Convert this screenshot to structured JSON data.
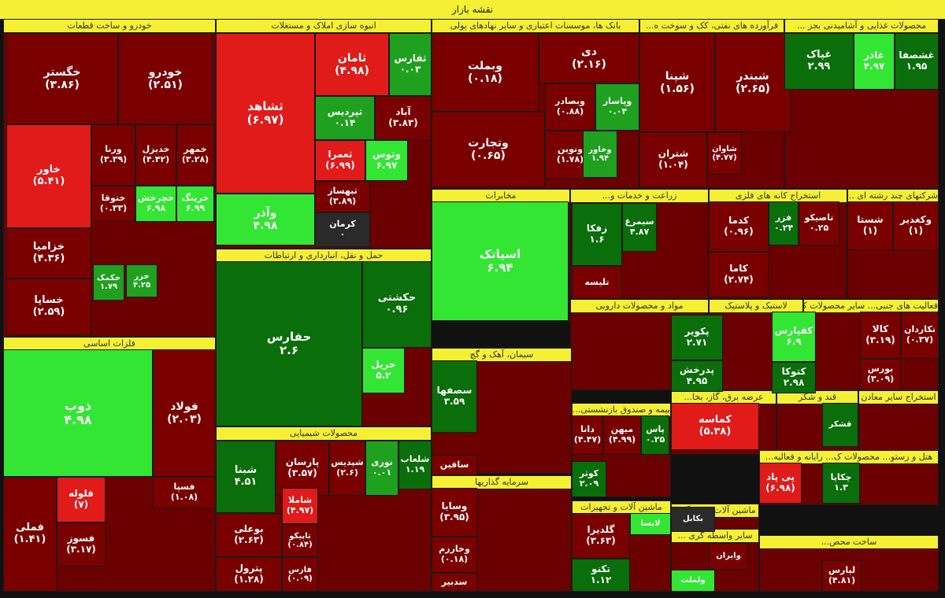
{
  "title": "نقشه بازار",
  "colors": {
    "dark_red": "#7a0000",
    "red": "#e11a1a",
    "bright_red": "#ff0000",
    "dark_green": "#0a6e0a",
    "green": "#1fa11f",
    "bright_green": "#33e633",
    "black": "#2a2a2a",
    "sector_bar": "#f6f034"
  },
  "sectors": [
    {
      "id": "auto",
      "label": "خودرو و ساخت قطعات"
    },
    {
      "id": "mass",
      "label": "انبوه سازی املاک و مستغلات"
    },
    {
      "id": "bank",
      "label": "بانک ها، موسسات اعتباری و سایر نهادهای پولی"
    },
    {
      "id": "oil",
      "label": "فرآورده های نفتی، کک و سوخت ه..."
    },
    {
      "id": "food",
      "label": "محصولات غذایی و آشامیدنی بجز ..."
    },
    {
      "id": "basic",
      "label": "فلزات اساسی"
    },
    {
      "id": "transport",
      "label": "حمل و نقل، انبارداری و ارتباطات"
    },
    {
      "id": "chem",
      "label": "محصولات شیمیایی"
    },
    {
      "id": "telecom",
      "label": "مخابرات"
    },
    {
      "id": "agri",
      "label": "زراعت و خدمات و..."
    },
    {
      "id": "mining",
      "label": "استخراج کانه های فلزی"
    },
    {
      "id": "multi",
      "label": "شرکتهای چند رشته ای ..."
    },
    {
      "id": "pharma",
      "label": "مواد و محصولات دارویی"
    },
    {
      "id": "rubber",
      "label": "لاستیک و پلاستیک"
    },
    {
      "id": "other",
      "label": "فعالیت های جنبی... سایر محصولات کا..."
    },
    {
      "id": "cement",
      "label": "سیمان، آهک و گچ"
    },
    {
      "id": "utility",
      "label": "عرضه برق، گاز، بخا..."
    },
    {
      "id": "sugar",
      "label": "قند و شکر"
    },
    {
      "id": "othermin",
      "label": "استخراج سایر معادن"
    },
    {
      "id": "insurance",
      "label": "بیمه و صندوق بازنشستی..."
    },
    {
      "id": "hotel",
      "label": "هتل و رستو... محصولات ک... رایانه و فعالیه..."
    },
    {
      "id": "invest",
      "label": "سرمایه گذاریها"
    },
    {
      "id": "machine",
      "label": "ماشین آلات و تجهیزات"
    },
    {
      "id": "machine2",
      "label": "ماشین آلات و دستگ..."
    },
    {
      "id": "broker",
      "label": "سایر واسطه گری ..."
    },
    {
      "id": "construction",
      "label": "ساخت محص..."
    }
  ],
  "stocks": [
    {
      "name": "خگستر",
      "value": "(۳.۸۶)",
      "color": "dark_red"
    },
    {
      "name": "خودرو",
      "value": "(۲.۵۱)",
      "color": "dark_red"
    },
    {
      "name": "خاور",
      "value": "(۵.۴۱)",
      "color": "red"
    },
    {
      "name": "ورنا",
      "value": "(۳.۳۹)",
      "color": "dark_red"
    },
    {
      "name": "خدیزل",
      "value": "(۴.۴۲)",
      "color": "dark_red"
    },
    {
      "name": "خمهر",
      "value": "(۳.۲۸)",
      "color": "dark_red"
    },
    {
      "name": "ختوقا",
      "value": "(۰.۳۳)",
      "color": "dark_red"
    },
    {
      "name": "خچرخش",
      "value": "۶.۹۸",
      "color": "bright_green"
    },
    {
      "name": "خرینگ",
      "value": "۶.۹۹",
      "color": "bright_green"
    },
    {
      "name": "خزامیا",
      "value": "(۴.۳۶)",
      "color": "dark_red"
    },
    {
      "name": "خساپا",
      "value": "(۲.۵۹)",
      "color": "dark_red"
    },
    {
      "name": "خکمک",
      "value": "۱.۷۹",
      "color": "green"
    },
    {
      "name": "خزر",
      "value": "۴.۲۵",
      "color": "green"
    },
    {
      "name": "ثشاهد",
      "value": "(۶.۹۷)",
      "color": "red"
    },
    {
      "name": "ثامان",
      "value": "(۴.۹۸)",
      "color": "red"
    },
    {
      "name": "ثفارس",
      "value": "۰.۰۳",
      "color": "green"
    },
    {
      "name": "ثپردیس",
      "value": "۰.۱۴",
      "color": "green"
    },
    {
      "name": "آباد",
      "value": "(۳.۸۳)",
      "color": "dark_red"
    },
    {
      "name": "ثعمرا",
      "value": "(۶.۹۹)",
      "color": "red"
    },
    {
      "name": "وتوس",
      "value": "۶.۹۷",
      "color": "bright_green"
    },
    {
      "name": "وآذر",
      "value": "۴.۹۸",
      "color": "bright_green"
    },
    {
      "name": "ثبهساز",
      "value": "(۳.۸۹)",
      "color": "dark_red"
    },
    {
      "name": "کرمان",
      "value": "۰",
      "color": "black"
    },
    {
      "name": "وبملت",
      "value": "(۰.۱۸)",
      "color": "dark_red"
    },
    {
      "name": "دی",
      "value": "(۲.۱۶)",
      "color": "dark_red"
    },
    {
      "name": "وتجارت",
      "value": "(۰.۶۵)",
      "color": "dark_red"
    },
    {
      "name": "وبصادر",
      "value": "(۰.۸۸)",
      "color": "dark_red"
    },
    {
      "name": "وپاسار",
      "value": "۰.۰۴",
      "color": "green"
    },
    {
      "name": "ونوین",
      "value": "(۱.۷۸)",
      "color": "dark_red"
    },
    {
      "name": "وخاور",
      "value": "۱.۹۴",
      "color": "green"
    },
    {
      "name": "شپنا",
      "value": "(۱.۵۶)",
      "color": "dark_red"
    },
    {
      "name": "شبندر",
      "value": "(۲.۶۵)",
      "color": "dark_red"
    },
    {
      "name": "شتران",
      "value": "(۱.۰۴)",
      "color": "dark_red"
    },
    {
      "name": "شاوان",
      "value": "(۴.۷۷)",
      "color": "dark_red"
    },
    {
      "name": "غپاک",
      "value": "۲.۹۹",
      "color": "dark_green"
    },
    {
      "name": "غاذر",
      "value": "۴.۹۷",
      "color": "bright_green"
    },
    {
      "name": "غشصفا",
      "value": "۱.۹۵",
      "color": "dark_green"
    },
    {
      "name": "ذوب",
      "value": "۴.۹۸",
      "color": "bright_green"
    },
    {
      "name": "فولاد",
      "value": "(۲.۰۳)",
      "color": "dark_red"
    },
    {
      "name": "فملی",
      "value": "(۱.۴۱)",
      "color": "dark_red"
    },
    {
      "name": "فلوله",
      "value": "(۷)",
      "color": "red"
    },
    {
      "name": "فسوز",
      "value": "(۳.۱۷)",
      "color": "dark_red"
    },
    {
      "name": "حفارس",
      "value": "۲.۶",
      "color": "dark_green"
    },
    {
      "name": "حکشتی",
      "value": "۰.۹۶",
      "color": "dark_green"
    },
    {
      "name": "حریل",
      "value": "۵.۲",
      "color": "bright_green"
    },
    {
      "name": "شبنا",
      "value": "۴.۵۱",
      "color": "dark_green"
    },
    {
      "name": "پارسان",
      "value": "(۳.۵۷)",
      "color": "dark_red"
    },
    {
      "name": "شپدیس",
      "value": "(۲.۶)",
      "color": "dark_red"
    },
    {
      "name": "نوری",
      "value": "۰.۰۱",
      "color": "green"
    },
    {
      "name": "شلعاب",
      "value": "۱.۱۹",
      "color": "dark_green"
    },
    {
      "name": "بوعلی",
      "value": "(۲.۶۳)",
      "color": "dark_red"
    },
    {
      "name": "شاملا",
      "value": "(۴.۹۷)",
      "color": "red"
    },
    {
      "name": "تاپیکو",
      "value": "(۰.۸۴)",
      "color": "dark_red"
    },
    {
      "name": "پترول",
      "value": "(۱.۲۸)",
      "color": "dark_red"
    },
    {
      "name": "فارس",
      "value": "(۰.۰۹)",
      "color": "dark_red"
    },
    {
      "name": "اسیاتک",
      "value": "۶.۹۴",
      "color": "bright_green"
    },
    {
      "name": "زفکا",
      "value": "۱.۶",
      "color": "dark_green"
    },
    {
      "name": "سیمرغ",
      "value": "۴.۸۷",
      "color": "dark_green"
    },
    {
      "name": "تلیسه",
      "value": "",
      "color": "dark_red"
    },
    {
      "name": "کدما",
      "value": "(۰.۹۶)",
      "color": "dark_red"
    },
    {
      "name": "فزر",
      "value": "۰.۲۴",
      "color": "dark_green"
    },
    {
      "name": "تاصیکو",
      "value": "۰.۲۵",
      "color": "dark_red"
    },
    {
      "name": "شستا",
      "value": "(۱)",
      "color": "dark_red"
    },
    {
      "name": "وکغدیر",
      "value": "(۱)",
      "color": "dark_red"
    },
    {
      "name": "کاما",
      "value": "(۲.۷۴)",
      "color": "dark_red"
    },
    {
      "name": "پکویر",
      "value": "۲.۷۱",
      "color": "dark_green"
    },
    {
      "name": "کفپارس",
      "value": "۶.۹",
      "color": "bright_green"
    },
    {
      "name": "کالا",
      "value": "(۳.۱۹)",
      "color": "dark_red"
    },
    {
      "name": "تکاردان",
      "value": "(۰.۳۷)",
      "color": "dark_red"
    },
    {
      "name": "پدرخش",
      "value": "۴.۹۵",
      "color": "dark_green"
    },
    {
      "name": "کتوکا",
      "value": "۲.۹۸",
      "color": "dark_green"
    },
    {
      "name": "بورس",
      "value": "(۳.۰۹)",
      "color": "dark_red"
    },
    {
      "name": "سصفها",
      "value": "۳.۵۹",
      "color": "dark_green"
    },
    {
      "name": "ساقین",
      "value": "",
      "color": "dark_red"
    },
    {
      "name": "کماسه",
      "value": "(۵.۳۸)",
      "color": "red"
    },
    {
      "name": "قشکر",
      "value": "",
      "color": "dark_green"
    },
    {
      "name": "دانا",
      "value": "(۴.۴۷)",
      "color": "dark_red"
    },
    {
      "name": "میهن",
      "value": "(۴.۹۹)",
      "color": "dark_red"
    },
    {
      "name": "پاس",
      "value": "۰.۲۵",
      "color": "dark_green"
    },
    {
      "name": "کوثر",
      "value": "۲.۰۹",
      "color": "dark_green"
    },
    {
      "name": "وسایا",
      "value": "(۳.۹۵)",
      "color": "dark_red"
    },
    {
      "name": "وخارزم",
      "value": "(۰.۱۸)",
      "color": "dark_red"
    },
    {
      "name": "سدبیر",
      "value": "",
      "color": "dark_red"
    },
    {
      "name": "گلدیرا",
      "value": "(۳.۶۳)",
      "color": "dark_red"
    },
    {
      "name": "تکنو",
      "value": "۱.۱۲",
      "color": "dark_green"
    },
    {
      "name": "لابسا",
      "value": "",
      "color": "bright_green"
    },
    {
      "name": "بکابل",
      "value": "",
      "color": "black"
    },
    {
      "name": "پی پاد",
      "value": "(۶.۹۸)",
      "color": "red"
    },
    {
      "name": "چکاپا",
      "value": "۱.۳",
      "color": "dark_green"
    },
    {
      "name": "فسپا",
      "value": "(۱.۰۸)",
      "color": "dark_red"
    },
    {
      "name": "وایران",
      "value": "",
      "color": "dark_red"
    },
    {
      "name": "ولملت",
      "value": "",
      "color": "bright_green"
    },
    {
      "name": "لپارس",
      "value": "(۴.۸۱)",
      "color": "dark_red"
    }
  ]
}
